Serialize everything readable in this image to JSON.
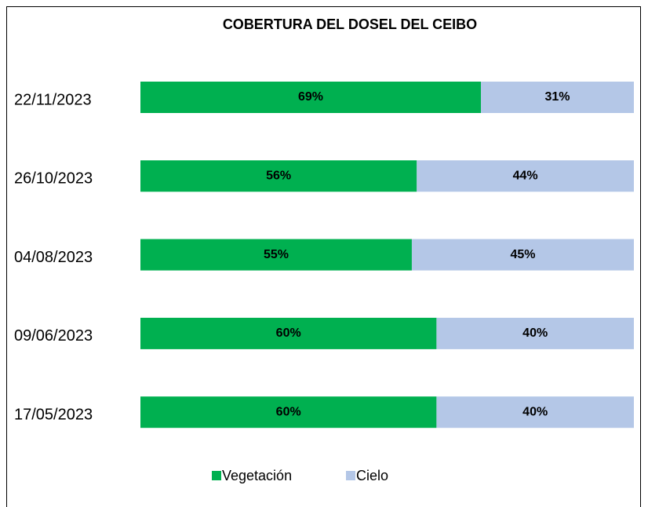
{
  "chart_data": {
    "type": "stacked_bar_horizontal",
    "title": "COBERTURA DEL DOSEL DEL CEIBO",
    "categories": [
      "22/11/2023",
      "26/10/2023",
      "04/08/2023",
      "09/06/2023",
      "17/05/2023"
    ],
    "series": [
      {
        "name": "Vegetación",
        "color": "#00b050",
        "values": [
          69,
          56,
          55,
          60,
          60
        ],
        "value_labels": [
          "69%",
          "56%",
          "55%",
          "60%",
          "60%"
        ]
      },
      {
        "name": "Cielo",
        "color": "#b4c7e7",
        "values": [
          31,
          44,
          45,
          40,
          40
        ],
        "value_labels": [
          "31%",
          "44%",
          "45%",
          "40%",
          "40%"
        ]
      }
    ]
  }
}
